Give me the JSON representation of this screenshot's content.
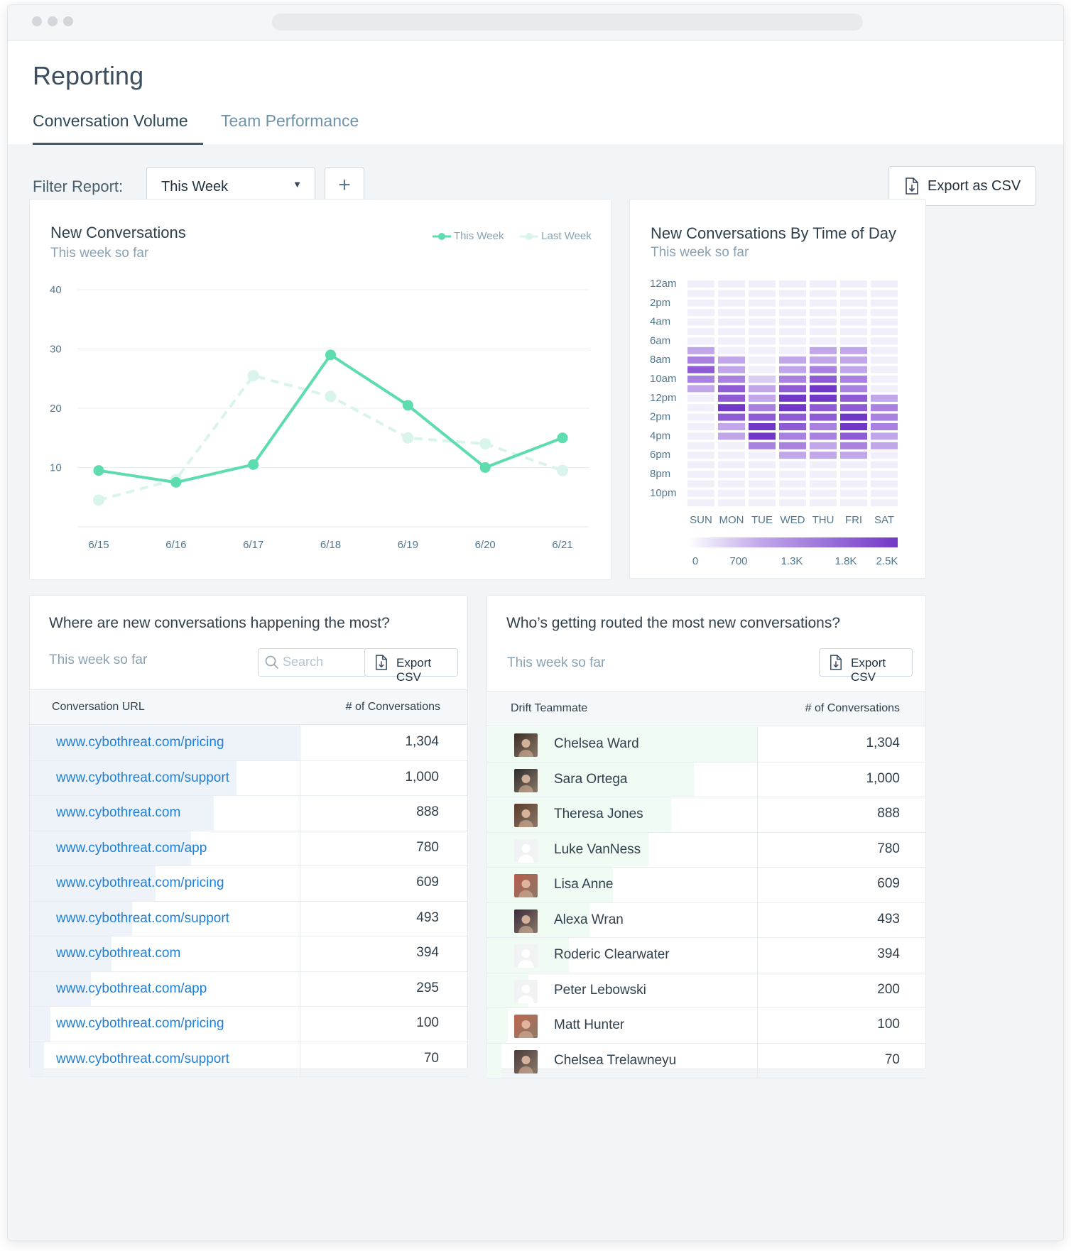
{
  "page": {
    "title": "Reporting",
    "tabs": [
      {
        "label": "Conversation Volume",
        "active": true
      },
      {
        "label": "Team Performance",
        "active": false
      }
    ]
  },
  "filter": {
    "label": "Filter Report:",
    "selected": "This Week",
    "add_icon": "plus-icon",
    "export_label": "Export as CSV",
    "export_icon": "document-download-icon"
  },
  "line_card": {
    "title": "New Conversations",
    "subtitle": "This week so far",
    "chart_data": {
      "type": "line",
      "categories": [
        "6/15",
        "6/16",
        "6/17",
        "6/18",
        "6/19",
        "6/20",
        "6/21"
      ],
      "series": [
        {
          "name": "This Week",
          "values": [
            9.5,
            7.5,
            10.5,
            29,
            20.5,
            10,
            15
          ],
          "color": "#5ddcae",
          "style": "solid"
        },
        {
          "name": "Last Week",
          "values": [
            4.5,
            8,
            25.5,
            22,
            15,
            14,
            9.5
          ],
          "color": "#d9f4ec",
          "style": "dashed"
        }
      ],
      "yticks": [
        10,
        20,
        30,
        40
      ],
      "ylim": [
        0,
        40
      ],
      "legend": "top-right",
      "grid": true
    }
  },
  "heat_card": {
    "title": "New Conversations By Time of Day",
    "subtitle": "This week so far",
    "chart_data": {
      "type": "heatmap",
      "x": [
        "SUN",
        "MON",
        "TUE",
        "WED",
        "THU",
        "FRI",
        "SAT"
      ],
      "y_tick_labels": [
        "12am",
        "2pm",
        "4am",
        "6am",
        "8am",
        "10am",
        "12pm",
        "2pm",
        "4pm",
        "6pm",
        "8pm",
        "10pm"
      ],
      "levels": [
        [
          0,
          0,
          0,
          0,
          0,
          0,
          0,
          2,
          3,
          4,
          3,
          2,
          0,
          0,
          0,
          0,
          0,
          0,
          0,
          0,
          0,
          0,
          0,
          0
        ],
        [
          0,
          0,
          0,
          0,
          0,
          0,
          0,
          0,
          2,
          2,
          3,
          4,
          4,
          5,
          4,
          2,
          2,
          0,
          0,
          0,
          0,
          0,
          0,
          0
        ],
        [
          0,
          0,
          0,
          0,
          0,
          0,
          0,
          0,
          0,
          0,
          1,
          2,
          2,
          3,
          4,
          5,
          5,
          3,
          0,
          0,
          0,
          0,
          0,
          0
        ],
        [
          0,
          0,
          0,
          0,
          0,
          0,
          0,
          0,
          2,
          2,
          3,
          4,
          5,
          5,
          4,
          4,
          3,
          3,
          2,
          0,
          0,
          0,
          0,
          0
        ],
        [
          0,
          0,
          0,
          0,
          0,
          0,
          0,
          2,
          2,
          3,
          4,
          5,
          5,
          4,
          4,
          3,
          3,
          2,
          2,
          0,
          0,
          0,
          0,
          0
        ],
        [
          0,
          0,
          0,
          0,
          0,
          0,
          0,
          2,
          2,
          2,
          3,
          3,
          4,
          4,
          5,
          5,
          4,
          3,
          2,
          0,
          0,
          0,
          0,
          0
        ],
        [
          0,
          0,
          0,
          0,
          0,
          0,
          0,
          0,
          0,
          0,
          0,
          0,
          2,
          3,
          3,
          3,
          2,
          2,
          0,
          0,
          0,
          0,
          0,
          0
        ]
      ],
      "colorbar_ticks": [
        "0",
        "700",
        "1.3K",
        "1.8K",
        "2.5K"
      ],
      "colorscale": [
        "#f1effa",
        "#d9cdf2",
        "#c1a7ea",
        "#a981e0",
        "#8f5bd4",
        "#7138c7"
      ]
    }
  },
  "urls_card": {
    "title": "Where are new conversations happening the most?",
    "subtitle": "This week so far",
    "search_placeholder": "Search",
    "search_icon": "search-icon",
    "export_label": "Export CSV",
    "export_icon": "document-download-icon",
    "col_url": "Conversation URL",
    "col_count": "# of Conversations",
    "bar_color": "#eef3f9",
    "rows": [
      {
        "url": "www.cybothreat.com/pricing",
        "count": "1,304",
        "value": 1304
      },
      {
        "url": "www.cybothreat.com/support",
        "count": "1,000",
        "value": 1000
      },
      {
        "url": "www.cybothreat.com",
        "count": "888",
        "value": 888
      },
      {
        "url": "www.cybothreat.com/app",
        "count": "780",
        "value": 780
      },
      {
        "url": "www.cybothreat.com/pricing",
        "count": "609",
        "value": 609
      },
      {
        "url": "www.cybothreat.com/support",
        "count": "493",
        "value": 493
      },
      {
        "url": "www.cybothreat.com",
        "count": "394",
        "value": 394
      },
      {
        "url": "www.cybothreat.com/app",
        "count": "295",
        "value": 295
      },
      {
        "url": "www.cybothreat.com/pricing",
        "count": "100",
        "value": 100
      },
      {
        "url": "www.cybothreat.com/support",
        "count": "70",
        "value": 70
      }
    ]
  },
  "team_card": {
    "title": "Who’s getting routed the most new conversations?",
    "subtitle": "This week so far",
    "export_label": "Export CSV",
    "export_icon": "document-download-icon",
    "col_name": "Drift Teammate",
    "col_count": "# of Conversations",
    "bar_color": "#f0fbf3",
    "rows": [
      {
        "name": "Chelsea Ward",
        "count": "1,304",
        "value": 1304,
        "avatar": "photo"
      },
      {
        "name": "Sara Ortega",
        "count": "1,000",
        "value": 1000,
        "avatar": "photo"
      },
      {
        "name": "Theresa Jones",
        "count": "888",
        "value": 888,
        "avatar": "photo"
      },
      {
        "name": "Luke VanNess",
        "count": "780",
        "value": 780,
        "avatar": "placeholder"
      },
      {
        "name": "Lisa Anne",
        "count": "609",
        "value": 609,
        "avatar": "photo"
      },
      {
        "name": "Alexa Wran",
        "count": "493",
        "value": 493,
        "avatar": "photo"
      },
      {
        "name": "Roderic Clearwater",
        "count": "394",
        "value": 394,
        "avatar": "placeholder"
      },
      {
        "name": "Peter Lebowski",
        "count": "200",
        "value": 200,
        "avatar": "placeholder"
      },
      {
        "name": "Matt Hunter",
        "count": "100",
        "value": 100,
        "avatar": "photo"
      },
      {
        "name": "Chelsea Trelawneyu",
        "count": "70",
        "value": 70,
        "avatar": "photo"
      }
    ]
  }
}
